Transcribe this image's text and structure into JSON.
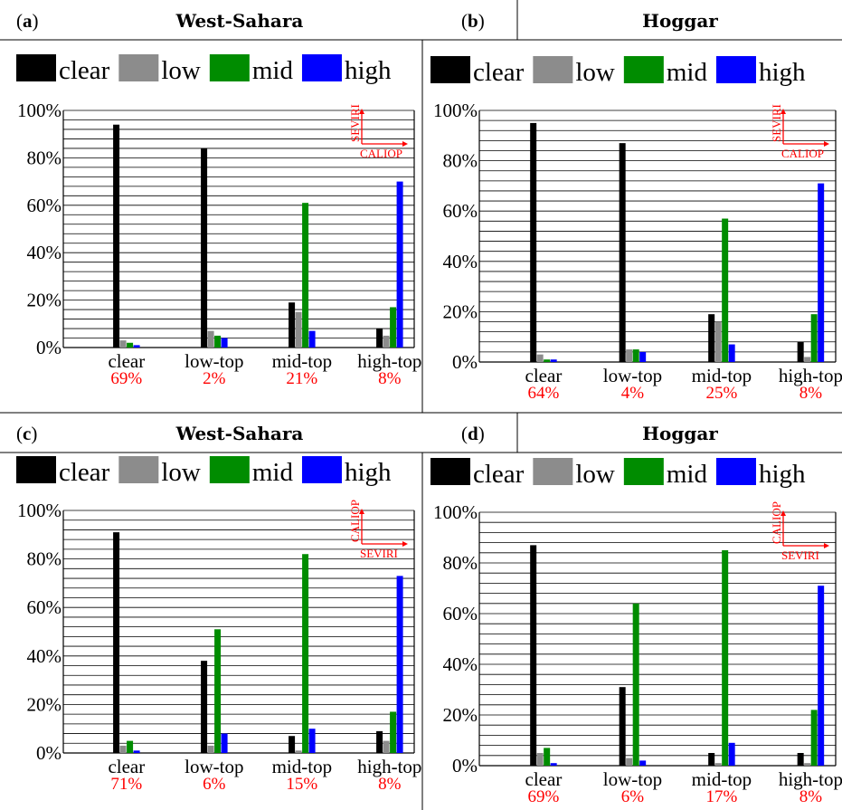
{
  "legend_labels": [
    "clear",
    "low",
    "mid",
    "high"
  ],
  "colors": {
    "clear": "#000000",
    "low": "#8c8c8c",
    "mid": "#008c00",
    "high": "#0000ff",
    "annotation": "#ff0000",
    "grid": "#000000"
  },
  "chart_data": [
    {
      "type": "bar",
      "panel_label": "a",
      "title": "West-Sahara",
      "categories": [
        "clear",
        "low-top",
        "mid-top",
        "high-top"
      ],
      "category_shares": [
        "69%",
        "2%",
        "21%",
        "8%"
      ],
      "ylim": [
        0,
        100
      ],
      "yticks": [
        "0%",
        "20%",
        "40%",
        "60%",
        "80%",
        "100%"
      ],
      "inset": {
        "vertical": "SEVIRI",
        "horizontal": "CALIOP"
      },
      "series": [
        {
          "name": "clear",
          "values": [
            94,
            84,
            19,
            8
          ]
        },
        {
          "name": "low",
          "values": [
            3,
            7,
            15,
            5
          ]
        },
        {
          "name": "mid",
          "values": [
            2,
            5,
            61,
            17
          ]
        },
        {
          "name": "high",
          "values": [
            1,
            4,
            7,
            70
          ]
        }
      ]
    },
    {
      "type": "bar",
      "panel_label": "b",
      "title": "Hoggar",
      "categories": [
        "clear",
        "low-top",
        "mid-top",
        "high-top"
      ],
      "category_shares": [
        "64%",
        "4%",
        "25%",
        "8%"
      ],
      "ylim": [
        0,
        100
      ],
      "yticks": [
        "0%",
        "20%",
        "40%",
        "60%",
        "80%",
        "100%"
      ],
      "inset": {
        "vertical": "SEVIRI",
        "horizontal": "CALIOP"
      },
      "series": [
        {
          "name": "clear",
          "values": [
            95,
            87,
            19,
            8
          ]
        },
        {
          "name": "low",
          "values": [
            3,
            5,
            16,
            2
          ]
        },
        {
          "name": "mid",
          "values": [
            1,
            5,
            57,
            19
          ]
        },
        {
          "name": "high",
          "values": [
            1,
            4,
            7,
            71
          ]
        }
      ]
    },
    {
      "type": "bar",
      "panel_label": "c",
      "title": "West-Sahara",
      "categories": [
        "clear",
        "low-top",
        "mid-top",
        "high-top"
      ],
      "category_shares": [
        "71%",
        "6%",
        "15%",
        "8%"
      ],
      "ylim": [
        0,
        100
      ],
      "yticks": [
        "0%",
        "20%",
        "40%",
        "60%",
        "80%",
        "100%"
      ],
      "inset": {
        "vertical": "CALIOP",
        "horizontal": "SEVIRI"
      },
      "series": [
        {
          "name": "clear",
          "values": [
            91,
            38,
            7,
            9
          ]
        },
        {
          "name": "low",
          "values": [
            3,
            3,
            1,
            5
          ]
        },
        {
          "name": "mid",
          "values": [
            5,
            51,
            82,
            17
          ]
        },
        {
          "name": "high",
          "values": [
            1,
            8,
            10,
            73
          ]
        }
      ]
    },
    {
      "type": "bar",
      "panel_label": "d",
      "title": "Hoggar",
      "categories": [
        "clear",
        "low-top",
        "mid-top",
        "high-top"
      ],
      "category_shares": [
        "69%",
        "6%",
        "17%",
        "8%"
      ],
      "ylim": [
        0,
        100
      ],
      "yticks": [
        "0%",
        "20%",
        "40%",
        "60%",
        "80%",
        "100%"
      ],
      "inset": {
        "vertical": "CALIOP",
        "horizontal": "SEVIRI"
      },
      "series": [
        {
          "name": "clear",
          "values": [
            87,
            31,
            5,
            5
          ]
        },
        {
          "name": "low",
          "values": [
            5,
            3,
            1,
            1
          ]
        },
        {
          "name": "mid",
          "values": [
            7,
            64,
            85,
            22
          ]
        },
        {
          "name": "high",
          "values": [
            1,
            2,
            9,
            71
          ]
        }
      ]
    }
  ]
}
